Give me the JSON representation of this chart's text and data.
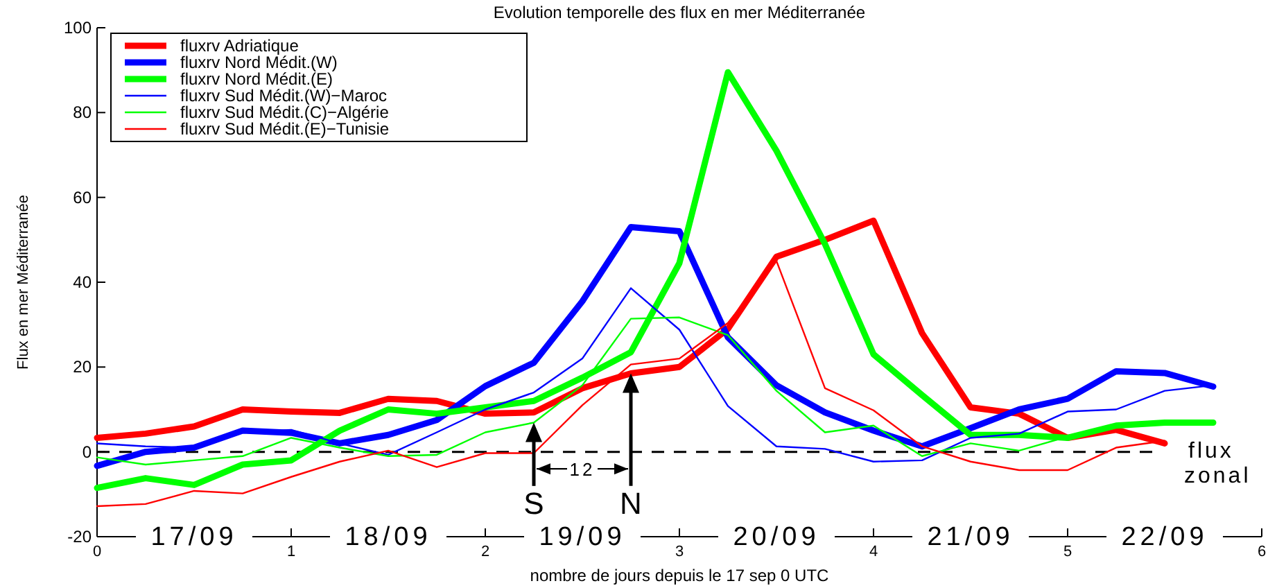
{
  "chart_data": {
    "type": "line",
    "title": "Evolution temporelle des flux en mer Méditerranée",
    "xlabel": "nombre de jours depuis le 17 sep 0 UTC",
    "ylabel": "Flux en mer Méditerranée",
    "x": [
      0,
      0.25,
      0.5,
      0.75,
      1,
      1.25,
      1.5,
      1.75,
      2,
      2.25,
      2.5,
      2.75,
      3,
      3.25,
      3.5,
      3.75,
      4,
      4.25,
      4.5,
      4.75,
      5,
      5.25,
      5.5,
      5.75
    ],
    "series": [
      {
        "name": "fluxrv Adriatique",
        "color": "#ff0000",
        "values": [
          3.3,
          4.3,
          6,
          10,
          9.5,
          9.2,
          12.5,
          12,
          9,
          9.3,
          15,
          18.5,
          20,
          29,
          46,
          50,
          54.5,
          28,
          10.5,
          9,
          3.3,
          5.2,
          2,
          null
        ]
      },
      {
        "name": "fluxrv Nord Médit.(W)",
        "color": "#0000ff",
        "values": [
          -3.3,
          0,
          1,
          5,
          4.5,
          2,
          4,
          7.5,
          15.5,
          21,
          35.5,
          53,
          52,
          27,
          15.7,
          9.3,
          5,
          1.3,
          5.6,
          10,
          12.5,
          19,
          18.6,
          15.4
        ]
      },
      {
        "name": "fluxrv Nord Médit.(E)",
        "color": "#00ff00",
        "values": [
          -8.5,
          -6.2,
          -7.8,
          -3,
          -2,
          5,
          10,
          9,
          10.5,
          12,
          17.5,
          23.5,
          44.5,
          89.5,
          71,
          49,
          23,
          13.4,
          4,
          4,
          3.3,
          6.2,
          6.9,
          6.9
        ]
      },
      {
        "name": "fluxrv Sud Médit.(W)−Maroc",
        "color": "#0000ff",
        "values": [
          2,
          1.3,
          1,
          4.6,
          5.2,
          2,
          -0.7,
          4.6,
          10,
          14,
          22,
          38.6,
          28.8,
          10.8,
          1.3,
          0.7,
          -2.3,
          -2,
          3.3,
          4.3,
          9.5,
          10,
          14.4,
          15.7
        ]
      },
      {
        "name": "fluxrv Sud Médit.(C)−Algérie",
        "color": "#00ff00",
        "values": [
          -1.3,
          -3,
          -2,
          -1,
          3.3,
          1,
          -1,
          -0.7,
          4.6,
          6.9,
          15.7,
          31.4,
          31.7,
          27.5,
          14.4,
          4.6,
          6.2,
          -1,
          2,
          0.3,
          3.6,
          6.2,
          7.2,
          7.2
        ]
      },
      {
        "name": "fluxrv Sud Médit.(E)−Tunisie",
        "color": "#ff0000",
        "values": [
          -12.8,
          -12.3,
          -9.2,
          -9.8,
          -5.9,
          -2.3,
          0.3,
          -3.6,
          -0.3,
          -0.3,
          11,
          20.6,
          22,
          30.4,
          45,
          15,
          9.8,
          1.3,
          -2.3,
          -4.3,
          -4.3,
          1,
          2.6,
          null
        ]
      }
    ],
    "xlim": [
      0,
      6
    ],
    "xticks": [
      0,
      1,
      2,
      3,
      4,
      5,
      6
    ],
    "ylim": [
      -20,
      100
    ],
    "yticks": [
      -20,
      0,
      20,
      40,
      60,
      80,
      100
    ],
    "legend": "top left",
    "line_style": "solid",
    "marker": "none",
    "ref_lines": [
      {
        "axis": "y",
        "value": 0,
        "label": "flux zonal",
        "line_style": "dashed",
        "color": "#000000"
      }
    ],
    "annotations": [
      "S",
      "N",
      "12",
      "17/09",
      "18/09",
      "19/09",
      "20/09",
      "21/09",
      "22/09"
    ]
  }
}
